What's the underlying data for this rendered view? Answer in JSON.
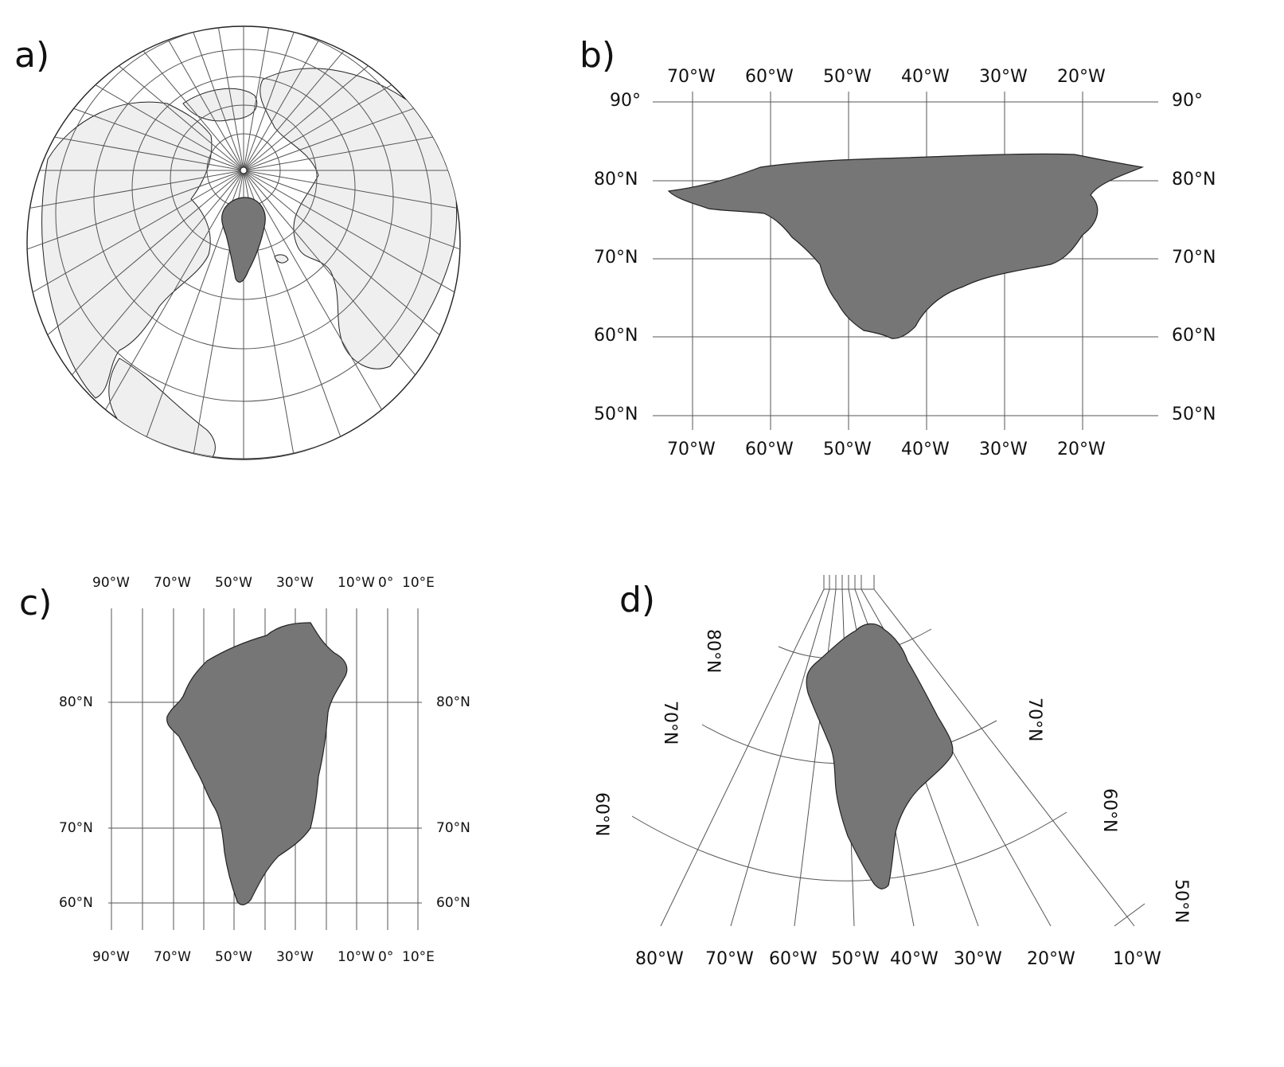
{
  "panels": {
    "a": {
      "label": "a)"
    },
    "b": {
      "label": "b)",
      "lon_labels": [
        "70°W",
        "60°W",
        "50°W",
        "40°W",
        "30°W",
        "20°W"
      ],
      "lat_labels": [
        "90°",
        "80°N",
        "70°N",
        "60°N",
        "50°N"
      ]
    },
    "c": {
      "label": "c)",
      "lon_labels": [
        "90°W",
        "70°W",
        "50°W",
        "30°W",
        "10°W",
        "0°",
        "10°E"
      ],
      "lat_labels": [
        "80°N",
        "70°N",
        "60°N"
      ]
    },
    "d": {
      "label": "d)",
      "lon_labels": [
        "80°W",
        "70°W",
        "60°W",
        "50°W",
        "40°W",
        "30°W",
        "20°W",
        "10°W"
      ],
      "lat_labels_left": [
        "80°N",
        "70°N",
        "60°N"
      ],
      "lat_labels_right": [
        "70°N",
        "60°N",
        "50°N"
      ]
    }
  },
  "colors": {
    "greenland": "#767676",
    "land": "#efefef",
    "grid": "#555555",
    "ocean": "#ffffff"
  }
}
